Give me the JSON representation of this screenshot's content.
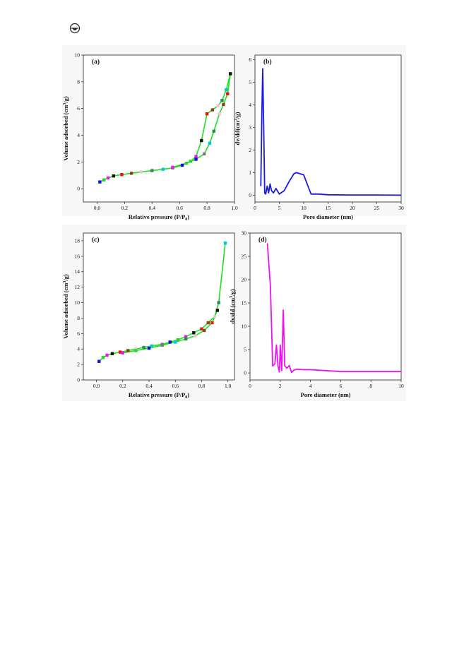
{
  "page": {
    "icon": "open-access-icon"
  },
  "chart_data": [
    {
      "panel": "(a)",
      "type": "scatter",
      "xlabel": "Relative pressure (P/P",
      "xlabel_sub": "0",
      "xlabel_end": ")",
      "ylabel": "Volume adsorbed (cm",
      "ylabel_sup": "3",
      "ylabel_end": "/g)",
      "xlim": [
        -0.1,
        1.0
      ],
      "ylim": [
        -1,
        10
      ],
      "xticks": [
        0.0,
        0.2,
        0.4,
        0.6,
        0.8,
        1.0
      ],
      "xtick_labels": [
        "0.0",
        "0.2",
        "0.4",
        "0.6",
        "0.8",
        "1.0"
      ],
      "yticks": [
        0,
        2,
        4,
        6,
        8,
        10
      ],
      "ytick_labels": [
        "0",
        "2",
        "4",
        "6",
        "8",
        "10"
      ],
      "line_color": "#22dd22",
      "series": [
        {
          "points": [
            [
              0.02,
              0.5
            ],
            [
              0.05,
              0.65
            ],
            [
              0.08,
              0.8
            ],
            [
              0.12,
              0.95
            ],
            [
              0.18,
              1.05
            ],
            [
              0.25,
              1.15
            ],
            [
              0.32,
              1.25
            ],
            [
              0.4,
              1.35
            ],
            [
              0.48,
              1.45
            ],
            [
              0.55,
              1.55
            ],
            [
              0.62,
              1.75
            ],
            [
              0.68,
              2.05
            ],
            [
              0.72,
              2.4
            ],
            [
              0.76,
              3.6
            ],
            [
              0.8,
              5.6
            ],
            [
              0.84,
              5.9
            ],
            [
              0.88,
              6.2
            ],
            [
              0.91,
              6.6
            ],
            [
              0.94,
              7.4
            ],
            [
              0.97,
              8.6
            ]
          ]
        },
        {
          "points": [
            [
              0.97,
              8.6
            ],
            [
              0.95,
              7.1
            ],
            [
              0.92,
              6.3
            ],
            [
              0.89,
              5.6
            ],
            [
              0.85,
              4.3
            ],
            [
              0.82,
              3.4
            ],
            [
              0.78,
              2.6
            ],
            [
              0.72,
              2.2
            ],
            [
              0.65,
              1.9
            ],
            [
              0.55,
              1.6
            ]
          ]
        }
      ]
    },
    {
      "panel": "(b)",
      "type": "line",
      "xlabel": "Pore diameter (nm)",
      "ylabel": "dv/dd(cm",
      "ylabel_sup": "3",
      "ylabel_end": "/g)",
      "xlim": [
        0,
        30
      ],
      "ylim": [
        -0.3,
        6.2
      ],
      "xticks": [
        0,
        5,
        10,
        15,
        20,
        25,
        30
      ],
      "xtick_labels": [
        "0",
        "5",
        "10",
        "15",
        "20",
        "25",
        "30"
      ],
      "yticks": [
        0,
        1,
        2,
        3,
        4,
        5,
        6
      ],
      "ytick_labels": [
        "0",
        "1",
        "2",
        "3",
        "4",
        "5",
        "6"
      ],
      "line_color": "#1a1ae6",
      "x": [
        1.2,
        1.4,
        1.6,
        1.8,
        2.0,
        2.2,
        2.5,
        2.8,
        3.1,
        3.4,
        3.8,
        4.3,
        5.0,
        6.0,
        7.0,
        8.0,
        8.5,
        10.0,
        11.5,
        13.0,
        15.0,
        20.0,
        25.0,
        30.0
      ],
      "y": [
        0.4,
        3.5,
        5.6,
        3.0,
        0.1,
        0.05,
        0.4,
        0.1,
        0.5,
        0.2,
        0.1,
        0.3,
        0.05,
        0.2,
        0.6,
        0.95,
        1.0,
        0.9,
        0.05,
        0.05,
        0.02,
        0.01,
        0.01,
        0.0
      ]
    },
    {
      "panel": "(c)",
      "type": "scatter",
      "xlabel": "Relative pressure (P/P",
      "xlabel_sub": "0",
      "xlabel_end": ")",
      "ylabel": "Volume adsorbed (cm",
      "ylabel_sup": "3",
      "ylabel_end": "/g)",
      "xlim": [
        -0.1,
        1.05
      ],
      "ylim": [
        0,
        19
      ],
      "xticks": [
        0.0,
        0.2,
        0.4,
        0.6,
        0.8,
        1.0
      ],
      "xtick_labels": [
        "0.0",
        "0.2",
        "0.4",
        "0.6",
        "0.8",
        "1.0"
      ],
      "yticks": [
        0,
        2,
        4,
        6,
        8,
        10,
        12,
        14,
        16,
        18
      ],
      "ytick_labels": [
        "0",
        "2",
        "4",
        "6",
        "8",
        "10",
        "12",
        "14",
        "16",
        "18"
      ],
      "line_color": "#22dd22",
      "series": [
        {
          "points": [
            [
              0.02,
              2.4
            ],
            [
              0.05,
              2.9
            ],
            [
              0.08,
              3.2
            ],
            [
              0.12,
              3.4
            ],
            [
              0.18,
              3.6
            ],
            [
              0.24,
              3.8
            ],
            [
              0.3,
              4.0
            ],
            [
              0.36,
              4.2
            ],
            [
              0.42,
              4.4
            ],
            [
              0.5,
              4.6
            ],
            [
              0.56,
              4.9
            ],
            [
              0.62,
              5.2
            ],
            [
              0.68,
              5.6
            ],
            [
              0.74,
              6.1
            ],
            [
              0.8,
              6.6
            ],
            [
              0.85,
              7.4
            ],
            [
              0.9,
              8.2
            ],
            [
              0.93,
              10.0
            ],
            [
              0.98,
              17.7
            ]
          ]
        },
        {
          "points": [
            [
              0.92,
              9.0
            ],
            [
              0.88,
              7.4
            ],
            [
              0.82,
              6.4
            ],
            [
              0.75,
              5.7
            ],
            [
              0.68,
              5.3
            ],
            [
              0.6,
              4.9
            ],
            [
              0.5,
              4.5
            ],
            [
              0.4,
              4.1
            ],
            [
              0.3,
              3.8
            ],
            [
              0.2,
              3.5
            ]
          ]
        }
      ]
    },
    {
      "panel": "(d)",
      "type": "line",
      "xlabel": "Pore diameter (nm)",
      "ylabel": "dv/dd (cm",
      "ylabel_sup": "3",
      "ylabel_end": "/g)",
      "xlim": [
        0,
        10
      ],
      "ylim": [
        -1.5,
        30
      ],
      "xticks": [
        0,
        2,
        4,
        6,
        8,
        10
      ],
      "xtick_labels": [
        "0",
        "2",
        "4",
        "6",
        "8",
        "10"
      ],
      "yticks": [
        0,
        5,
        10,
        15,
        20,
        25,
        30
      ],
      "ytick_labels": [
        "0",
        "5",
        "10",
        "15",
        "20",
        "25",
        "30"
      ],
      "line_color": "#ee11ee",
      "x": [
        1.15,
        1.35,
        1.5,
        1.65,
        1.75,
        1.85,
        1.95,
        2.0,
        2.1,
        2.2,
        2.3,
        2.45,
        2.6,
        2.75,
        2.9,
        3.1,
        3.5,
        4.0,
        4.5,
        5.0,
        6.0,
        7.0,
        8.0,
        9.0,
        10.0
      ],
      "y": [
        27.8,
        18.5,
        1.5,
        2.0,
        6.0,
        1.5,
        0.2,
        6.0,
        0.5,
        13.5,
        1.5,
        1.0,
        1.6,
        0.1,
        0.6,
        0.8,
        0.7,
        0.7,
        0.6,
        0.5,
        0.3,
        0.3,
        0.3,
        0.3,
        0.3
      ]
    }
  ],
  "colors": {
    "marker_cycle": [
      "#1010ee",
      "#2bd62b",
      "#e81ce8",
      "#111111",
      "#ee1111",
      "#8b4513",
      "#e8c8c8",
      "#2e8b57",
      "#00cccc",
      "#7a7a7a"
    ]
  }
}
